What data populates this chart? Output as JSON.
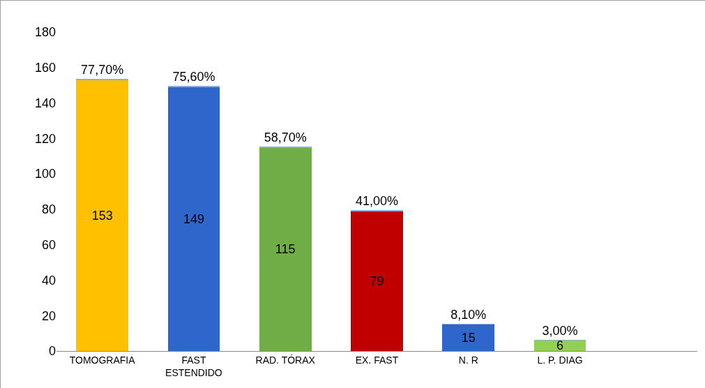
{
  "chart_data": {
    "type": "bar",
    "stacked": true,
    "categories": [
      "TOMOGRAFIA",
      "FAST ESTENDIDO",
      "RAD. TÓRAX",
      "EX. FAST",
      "N. R",
      "L. P. DIAG",
      null
    ],
    "series": [
      {
        "colors": [
          "#ffc000",
          "#2e66cc",
          "#70ad47",
          "#c00000",
          "#2e66cc",
          "#92d050",
          null
        ],
        "values": [
          153,
          149,
          115,
          79,
          15,
          6,
          null
        ],
        "value_labels": [
          "153",
          "149",
          "115",
          "79",
          "15",
          "6",
          null
        ]
      },
      {
        "color": "#8faadc",
        "values": [
          0.777,
          0.756,
          0.587,
          0.41,
          0.081,
          0.03,
          null
        ],
        "value_labels": [
          "77,70%",
          "75,60%",
          "58,70%",
          "41,00%",
          "8,10%",
          "3,00%",
          null
        ]
      }
    ],
    "ylim": [
      0,
      180
    ],
    "yticks": [
      0,
      20,
      40,
      60,
      80,
      100,
      120,
      140,
      160,
      180
    ],
    "grid": false
  }
}
